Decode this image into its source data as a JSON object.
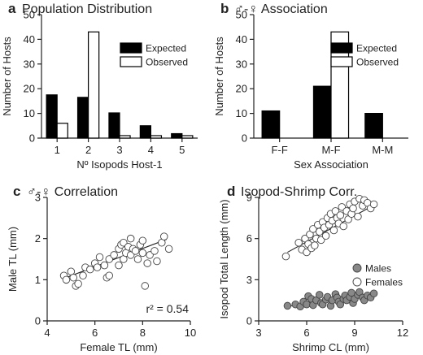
{
  "chart_data": [
    {
      "type": "bar",
      "panel": "a",
      "title": "Population Distribution",
      "xlabel": "Nº Isopods Host-1",
      "ylabel": "Number of Hosts",
      "categories": [
        "1",
        "2",
        "3",
        "4",
        "5"
      ],
      "series": [
        {
          "name": "Expected",
          "values": [
            17.5,
            16.5,
            10.2,
            5,
            1.8
          ],
          "color": "#000000"
        },
        {
          "name": "Observed",
          "values": [
            6,
            43,
            1,
            1,
            1
          ],
          "color": "#ffffff"
        }
      ],
      "ylim": [
        0,
        50
      ],
      "yticks": [
        0,
        10,
        20,
        30,
        40,
        50
      ],
      "legend": "top-right",
      "grid": false
    },
    {
      "type": "bar",
      "panel": "b",
      "title": "♂-♀ Association",
      "xlabel": "Sex Association",
      "ylabel": "Number of Hosts",
      "categories": [
        "F-F",
        "M-F",
        "M-M"
      ],
      "series": [
        {
          "name": "Expected",
          "values": [
            11,
            21,
            10
          ],
          "color": "#000000"
        },
        {
          "name": "Observed",
          "values": [
            0,
            43,
            0
          ],
          "color": "#ffffff"
        }
      ],
      "ylim": [
        0,
        50
      ],
      "yticks": [
        0,
        10,
        20,
        30,
        40,
        50
      ],
      "legend": "top-right",
      "grid": false
    },
    {
      "type": "scatter",
      "panel": "c",
      "title": "♂-♀ Correlation",
      "xlabel": "Female TL (mm)",
      "ylabel": "Male TL (mm)",
      "xlim": [
        4,
        10
      ],
      "ylim": [
        0,
        3
      ],
      "xticks": [
        4,
        6,
        8,
        10
      ],
      "yticks": [
        0,
        1,
        2,
        3
      ],
      "annotation": "r² = 0.54",
      "trend": {
        "x": [
          4.7,
          9.0
        ],
        "y": [
          1.03,
          1.98
        ]
      },
      "x": [
        4.7,
        4.8,
        5.0,
        5.1,
        5.2,
        5.3,
        5.5,
        5.6,
        5.8,
        6.0,
        6.1,
        6.2,
        6.4,
        6.5,
        6.6,
        6.6,
        6.8,
        7.0,
        7.0,
        7.1,
        7.2,
        7.2,
        7.3,
        7.4,
        7.5,
        7.5,
        7.6,
        7.7,
        7.8,
        7.9,
        8.0,
        8.0,
        8.1,
        8.2,
        8.3,
        8.5,
        8.6,
        8.8,
        8.9,
        9.1
      ],
      "y": [
        1.1,
        1.0,
        1.2,
        1.05,
        0.85,
        0.9,
        1.1,
        1.3,
        1.25,
        1.4,
        1.3,
        1.55,
        1.35,
        1.05,
        1.1,
        1.5,
        1.6,
        1.75,
        1.35,
        1.85,
        1.5,
        1.9,
        1.65,
        1.8,
        1.6,
        2.0,
        1.75,
        1.7,
        1.5,
        1.85,
        1.65,
        1.95,
        0.85,
        1.4,
        1.6,
        1.7,
        1.45,
        1.9,
        2.05,
        1.75
      ],
      "grid": false
    },
    {
      "type": "scatter",
      "panel": "d",
      "title": "Isopod-Shrimp Corr.",
      "xlabel": "Shrimp CL (mm)",
      "ylabel": "Isopod Total Length (mm)",
      "xlim": [
        3,
        12
      ],
      "ylim": [
        0,
        9
      ],
      "xticks": [
        3,
        6,
        9,
        12
      ],
      "yticks": [
        0,
        3,
        6,
        9
      ],
      "legend": "right",
      "grid": false,
      "series": [
        {
          "name": "Males",
          "color": "#888888",
          "trend": {
            "x": [
              4.8,
              10.3
            ],
            "y": [
              1.05,
              2.0
            ]
          },
          "x": [
            4.8,
            5.3,
            5.6,
            5.8,
            6.0,
            6.1,
            6.3,
            6.4,
            6.6,
            6.8,
            6.9,
            7.0,
            7.2,
            7.3,
            7.5,
            7.6,
            7.8,
            7.9,
            8.0,
            8.1,
            8.3,
            8.4,
            8.5,
            8.7,
            8.8,
            8.9,
            9.0,
            9.2,
            9.3,
            9.5,
            9.6,
            9.8,
            10.0,
            10.2
          ],
          "y": [
            1.1,
            1.2,
            1.05,
            1.4,
            1.2,
            1.8,
            1.6,
            1.15,
            1.5,
            1.9,
            1.3,
            1.2,
            1.55,
            1.75,
            1.1,
            1.5,
            1.95,
            1.7,
            1.4,
            1.2,
            1.6,
            1.85,
            1.5,
            1.75,
            2.05,
            1.3,
            1.6,
            1.9,
            2.1,
            1.7,
            1.5,
            1.85,
            1.7,
            2.0
          ]
        },
        {
          "name": "Females",
          "color": "#ffffff",
          "trend": {
            "x": [
              4.8,
              10.3
            ],
            "y": [
              5.0,
              8.5
            ]
          },
          "x": [
            4.7,
            5.5,
            5.7,
            5.9,
            6.0,
            6.1,
            6.2,
            6.3,
            6.4,
            6.5,
            6.6,
            6.7,
            6.8,
            6.9,
            7.0,
            7.1,
            7.2,
            7.3,
            7.4,
            7.5,
            7.6,
            7.7,
            7.8,
            7.9,
            8.0,
            8.1,
            8.2,
            8.3,
            8.5,
            8.6,
            8.7,
            8.8,
            8.9,
            9.0,
            9.2,
            9.3,
            9.5,
            9.6,
            9.8,
            10.0,
            10.2
          ],
          "y": [
            4.7,
            5.7,
            5.2,
            6.0,
            5.0,
            5.6,
            6.3,
            5.3,
            6.7,
            5.5,
            6.0,
            7.0,
            6.5,
            5.9,
            7.2,
            6.8,
            6.2,
            7.5,
            7.0,
            7.8,
            7.3,
            6.6,
            8.0,
            7.5,
            7.1,
            7.7,
            8.3,
            6.9,
            8.0,
            7.4,
            8.5,
            7.8,
            8.2,
            8.7,
            7.6,
            8.9,
            8.4,
            8.8,
            8.6,
            8.2,
            8.5
          ]
        }
      ]
    }
  ]
}
